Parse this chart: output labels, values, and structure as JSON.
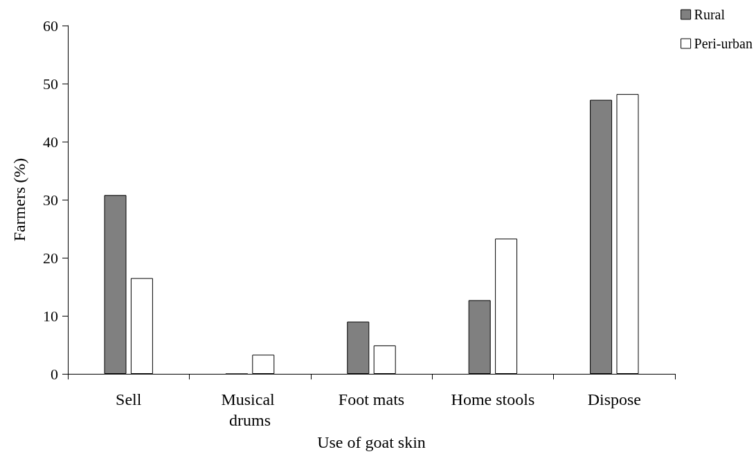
{
  "chart_data": {
    "type": "bar",
    "xlabel": "Use of goat skin",
    "ylabel": "Farmers (%)",
    "categories": [
      "Sell",
      "Musical drums",
      "Foot mats",
      "Home stools",
      "Dispose"
    ],
    "series": [
      {
        "name": "Rural",
        "color": "#808080",
        "values": [
          30.8,
          0,
          9,
          12.7,
          47.2
        ]
      },
      {
        "name": "Peri-urban",
        "color": "#ffffff",
        "values": [
          16.5,
          3.3,
          4.9,
          23.3,
          48.2
        ]
      }
    ],
    "ylim": [
      0,
      60
    ],
    "yticks": [
      0,
      10,
      20,
      30,
      40,
      50,
      60
    ],
    "grid": false,
    "legend": "top right"
  }
}
